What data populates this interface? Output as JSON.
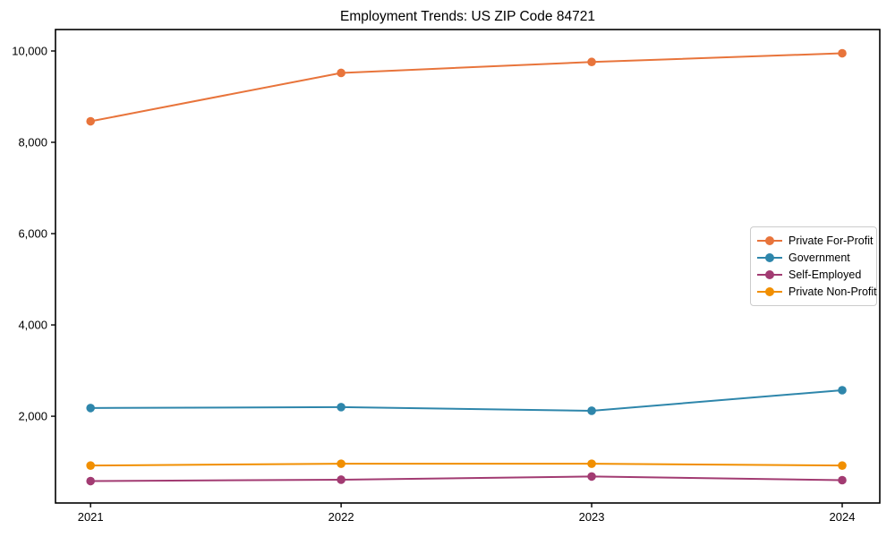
{
  "title": "Employment Trends: US ZIP Code 84721",
  "chart_data": {
    "type": "line",
    "title": "Employment Trends: US ZIP Code 84721",
    "xlabel": "",
    "ylabel": "",
    "x": [
      2021,
      2022,
      2023,
      2024
    ],
    "x_tick_labels": [
      "2021",
      "2022",
      "2023",
      "2024"
    ],
    "y_ticks": [
      2000,
      4000,
      6000,
      8000,
      10000
    ],
    "y_tick_labels": [
      "2,000",
      "4,000",
      "6,000",
      "8,000",
      "10,000"
    ],
    "xlim": [
      2020.86,
      2024.15
    ],
    "ylim": [
      100,
      10470
    ],
    "grid": false,
    "legend_position": "center right",
    "marker": "circle",
    "series": [
      {
        "name": "Private For-Profit",
        "color": "#e8743b",
        "values": [
          8460,
          9520,
          9760,
          9950
        ]
      },
      {
        "name": "Government",
        "color": "#2e86ab",
        "values": [
          2180,
          2200,
          2120,
          2570
        ]
      },
      {
        "name": "Self-Employed",
        "color": "#a23b72",
        "values": [
          580,
          610,
          680,
          600
        ]
      },
      {
        "name": "Private Non-Profit",
        "color": "#f18f01",
        "values": [
          920,
          960,
          960,
          920
        ]
      }
    ]
  }
}
